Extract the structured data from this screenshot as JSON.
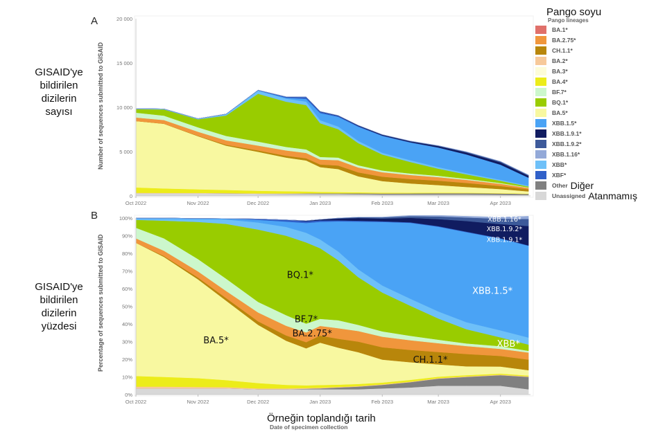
{
  "side_labels": {
    "a": [
      "GISAID'ye",
      "bildirilen",
      "dizilerin",
      "sayısı"
    ],
    "b": [
      "GISAID'ye",
      "bildirilen",
      "dizilerin",
      "yüzdesi"
    ]
  },
  "legend": {
    "title": "Pango soyu",
    "subtitle": "Pango lineages",
    "items": [
      {
        "name": "BA.1*",
        "color": "#e0706a"
      },
      {
        "name": "BA.2.75*",
        "color": "#f0963c"
      },
      {
        "name": "CH.1.1*",
        "color": "#b8860b"
      },
      {
        "name": "BA.2*",
        "color": "#f7c99a"
      },
      {
        "name": "BA.3*",
        "color": "#fdfcd8"
      },
      {
        "name": "BA.4*",
        "color": "#ecec1a"
      },
      {
        "name": "BF.7*",
        "color": "#ccf7cc"
      },
      {
        "name": "BQ.1*",
        "color": "#99cc00"
      },
      {
        "name": "BA.5*",
        "color": "#f8f8a0"
      },
      {
        "name": "XBB.1.5*",
        "color": "#4aa3f5"
      },
      {
        "name": "XBB.1.9.1*",
        "color": "#101c60"
      },
      {
        "name": "XBB.1.9.2*",
        "color": "#3d5a9a"
      },
      {
        "name": "XBB.1.16*",
        "color": "#93a9d8"
      },
      {
        "name": "XBB*",
        "color": "#6ec0f8"
      },
      {
        "name": "XBF*",
        "color": "#3060c8"
      },
      {
        "name": "Other",
        "color": "#808080",
        "translation": "Diğer"
      },
      {
        "name": "Unassigned",
        "color": "#d8d8d8",
        "translation": "Atanmamış"
      }
    ]
  },
  "x_title": "Örneğin toplandığı tarih",
  "x_subtitle": "Date of specimen collection",
  "chart_data": [
    {
      "panel": "A",
      "type": "area",
      "stacked": true,
      "ylabel": "Number of sequences submitted to GISAID",
      "xlabel": "Date of specimen collection",
      "ylim": [
        0,
        20000
      ],
      "yticks": [
        "0",
        "5 000",
        "10 000",
        "15 000",
        "20 000"
      ],
      "yticks_values": [
        0,
        5000,
        10000,
        15000,
        20000
      ],
      "xticks": [
        "Oct 2022",
        "Nov 2022",
        "Dec 2022",
        "Jan 2023",
        "Feb 2023",
        "Mar 2023",
        "Apr 2023"
      ],
      "x": [
        "2022-10-01",
        "2022-10-15",
        "2022-11-01",
        "2022-11-15",
        "2022-12-01",
        "2022-12-15",
        "2022-12-25",
        "2023-01-01",
        "2023-01-10",
        "2023-01-20",
        "2023-02-01",
        "2023-02-15",
        "2023-03-01",
        "2023-03-15",
        "2023-04-01",
        "2023-04-15"
      ],
      "series": [
        {
          "name": "Unassigned",
          "values": [
            300,
            300,
            300,
            280,
            250,
            230,
            220,
            200,
            200,
            180,
            150,
            150,
            150,
            150,
            120,
            100
          ]
        },
        {
          "name": "Other",
          "values": [
            0,
            0,
            0,
            0,
            0,
            20,
            50,
            80,
            80,
            100,
            120,
            130,
            150,
            150,
            150,
            120
          ]
        },
        {
          "name": "BA.2*",
          "values": [
            50,
            40,
            40,
            40,
            30,
            30,
            30,
            20,
            20,
            20,
            10,
            10,
            10,
            10,
            10,
            10
          ]
        },
        {
          "name": "BA.4*",
          "values": [
            600,
            500,
            400,
            350,
            300,
            250,
            200,
            150,
            130,
            110,
            90,
            70,
            60,
            50,
            40,
            30
          ]
        },
        {
          "name": "BA.5*",
          "values": [
            7500,
            7300,
            6000,
            5000,
            4400,
            3800,
            3500,
            2800,
            2600,
            1800,
            1300,
            1050,
            850,
            650,
            450,
            250
          ]
        },
        {
          "name": "CH.1.1*",
          "values": [
            0,
            20,
            50,
            100,
            150,
            200,
            250,
            300,
            400,
            450,
            500,
            500,
            500,
            450,
            350,
            250
          ]
        },
        {
          "name": "BA.2.75*",
          "values": [
            400,
            400,
            450,
            500,
            550,
            600,
            600,
            550,
            600,
            550,
            500,
            450,
            400,
            350,
            250,
            150
          ]
        },
        {
          "name": "BF.7*",
          "values": [
            550,
            500,
            500,
            500,
            450,
            400,
            400,
            300,
            300,
            250,
            200,
            170,
            150,
            120,
            80,
            50
          ]
        },
        {
          "name": "BQ.1*",
          "values": [
            400,
            700,
            900,
            2300,
            5400,
            5100,
            5000,
            3800,
            3200,
            2500,
            1800,
            1300,
            800,
            500,
            250,
            100
          ]
        },
        {
          "name": "XBB*",
          "values": [
            50,
            60,
            80,
            150,
            350,
            350,
            400,
            350,
            300,
            250,
            200,
            200,
            180,
            150,
            120,
            100
          ]
        },
        {
          "name": "XBB.1.5*",
          "values": [
            0,
            0,
            0,
            10,
            30,
            100,
            300,
            800,
            1100,
            1600,
            1900,
            2000,
            2200,
            2100,
            1700,
            900
          ]
        },
        {
          "name": "XBF*",
          "values": [
            0,
            0,
            0,
            10,
            30,
            100,
            200,
            150,
            100,
            80,
            50,
            30,
            20,
            10,
            10,
            5
          ]
        },
        {
          "name": "XBB.1.9.1*",
          "values": [
            0,
            0,
            0,
            0,
            0,
            10,
            20,
            30,
            40,
            60,
            80,
            100,
            150,
            200,
            250,
            200
          ]
        },
        {
          "name": "XBB.1.9.2*",
          "values": [
            0,
            0,
            0,
            0,
            0,
            0,
            0,
            10,
            10,
            20,
            20,
            30,
            50,
            80,
            100,
            80
          ]
        },
        {
          "name": "XBB.1.16*",
          "values": [
            0,
            0,
            0,
            0,
            0,
            0,
            0,
            0,
            0,
            0,
            0,
            10,
            10,
            20,
            30,
            40
          ]
        }
      ]
    },
    {
      "panel": "B",
      "type": "area",
      "stacked": true,
      "ylabel": "Percentage of sequences submitted to GISAID",
      "xlabel": "Date of specimen collection",
      "ylim": [
        0,
        100
      ],
      "yticks": [
        "0%",
        "10%",
        "20%",
        "30%",
        "40%",
        "50%",
        "60%",
        "70%",
        "80%",
        "90%",
        "100%"
      ],
      "yticks_values": [
        0,
        10,
        20,
        30,
        40,
        50,
        60,
        70,
        80,
        90,
        100
      ],
      "xticks": [
        "Oct 2022",
        "Nov 2022",
        "Dec 2022",
        "Jan 2023",
        "Feb 2023",
        "Mar 2023",
        "Apr 2023"
      ],
      "x": [
        "2022-10-01",
        "2022-10-15",
        "2022-11-01",
        "2022-11-15",
        "2022-12-01",
        "2022-12-15",
        "2022-12-25",
        "2023-01-01",
        "2023-01-10",
        "2023-01-20",
        "2023-02-01",
        "2023-02-15",
        "2023-03-01",
        "2023-03-15",
        "2023-04-01",
        "2023-04-15"
      ],
      "series": [
        {
          "name": "Unassigned",
          "values": [
            3.5,
            3.5,
            3.5,
            3.5,
            3,
            3,
            3,
            3,
            3,
            3,
            3.5,
            4,
            5,
            5,
            5,
            3
          ]
        },
        {
          "name": "Other",
          "values": [
            0,
            0,
            0,
            0,
            0,
            0,
            0.3,
            0.5,
            1,
            1.5,
            2,
            3,
            4,
            5,
            6,
            7
          ]
        },
        {
          "name": "BA.2*",
          "values": [
            1,
            1,
            0.8,
            0.7,
            0.5,
            0.5,
            0.4,
            0.4,
            0.3,
            0.3,
            0.3,
            0.3,
            0.3,
            0.3,
            0.3,
            0.3
          ]
        },
        {
          "name": "BA.4*",
          "values": [
            6,
            5.5,
            5,
            4,
            3,
            2,
            1.5,
            1.5,
            1.3,
            1.2,
            1,
            1,
            0.8,
            0.7,
            0.6,
            0.5
          ]
        },
        {
          "name": "BA.5*",
          "values": [
            75.5,
            68,
            56,
            45,
            33,
            25,
            21,
            24,
            21,
            18,
            13,
            10,
            7,
            5,
            4,
            3
          ]
        },
        {
          "name": "CH.1.1*",
          "values": [
            0,
            0.5,
            1,
            1.5,
            2,
            3,
            3.5,
            4,
            5,
            6,
            7,
            7,
            7,
            7,
            6,
            6
          ]
        },
        {
          "name": "BA.2.75*",
          "values": [
            2.5,
            3,
            3.5,
            4,
            5,
            5.5,
            5.5,
            5.5,
            6,
            6,
            6,
            5.5,
            5,
            4.5,
            4,
            4
          ]
        },
        {
          "name": "BF.7*",
          "values": [
            6,
            7,
            7,
            7,
            6,
            6,
            5,
            4,
            4.5,
            3.5,
            3,
            2.5,
            2,
            1.5,
            1.5,
            1
          ]
        },
        {
          "name": "BQ.1*",
          "values": [
            4.5,
            10,
            21,
            31,
            41,
            45,
            46,
            40,
            34,
            27,
            22,
            17,
            12,
            8,
            5,
            3.5
          ]
        },
        {
          "name": "XBB*",
          "values": [
            0.5,
            1,
            1.5,
            2.5,
            4,
            5,
            5.5,
            5,
            5,
            4.5,
            4,
            4,
            4,
            4,
            4,
            4
          ]
        },
        {
          "name": "XBB.1.5*",
          "values": [
            0.5,
            0.5,
            0.5,
            0.5,
            1.5,
            3,
            5.5,
            10,
            17,
            27,
            36,
            43,
            48,
            51,
            52,
            52
          ]
        },
        {
          "name": "XBF*",
          "values": [
            0,
            0,
            0,
            0,
            0.5,
            1,
            1,
            0.8,
            0.6,
            0.5,
            0.4,
            0.3,
            0.3,
            0.3,
            0.2,
            0.2
          ]
        },
        {
          "name": "XBB.1.9.1*",
          "values": [
            0,
            0,
            0,
            0,
            0,
            0,
            0.3,
            0.5,
            1,
            1.5,
            1.5,
            2.5,
            4,
            6,
            8,
            11
          ]
        },
        {
          "name": "XBB.1.9.2*",
          "values": [
            0,
            0,
            0,
            0,
            0,
            0,
            0,
            0,
            0.3,
            0.5,
            0.7,
            1,
            1.5,
            2,
            3,
            4
          ]
        },
        {
          "name": "XBB.1.16*",
          "values": [
            0,
            0,
            0,
            0,
            0,
            0,
            0,
            0,
            0,
            0,
            0.2,
            0.4,
            0.6,
            0.7,
            0.9,
            1.5
          ]
        }
      ],
      "annotations": [
        {
          "text": "BQ.1*",
          "x": "2022-12-22",
          "y": 66,
          "color": "#111"
        },
        {
          "text": "BF.7*",
          "x": "2022-12-25",
          "y": 41,
          "color": "#111"
        },
        {
          "text": "BA.2.75*",
          "x": "2022-12-28",
          "y": 33,
          "color": "#111"
        },
        {
          "text": "BA.5*",
          "x": "2022-11-10",
          "y": 29,
          "color": "#111"
        },
        {
          "text": "CH.1.1*",
          "x": "2023-02-25",
          "y": 18,
          "color": "#111"
        },
        {
          "text": "XBB.1.5*",
          "x": "2023-03-28",
          "y": 57,
          "color": "#ffffff"
        },
        {
          "text": "XBB*",
          "x": "2023-04-05",
          "y": 27,
          "color": "#ffffff"
        },
        {
          "text": "XBB.1.16*",
          "x": "2023-04-03",
          "y": 98,
          "color": "#ffffff"
        },
        {
          "text": "XBB.1.9.2*",
          "x": "2023-04-03",
          "y": 92.5,
          "color": "#ffffff"
        },
        {
          "text": "XBB.1.9.1*",
          "x": "2023-04-03",
          "y": 86.5,
          "color": "#ffffff"
        }
      ]
    }
  ]
}
